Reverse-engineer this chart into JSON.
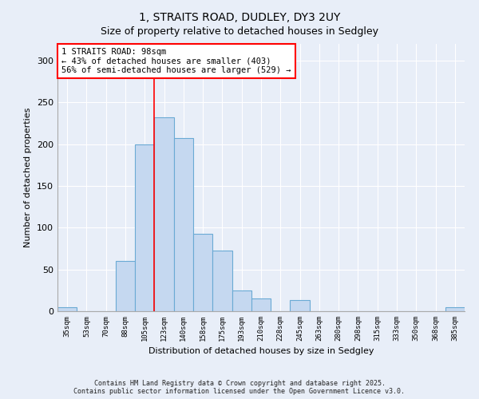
{
  "title_line1": "1, STRAITS ROAD, DUDLEY, DY3 2UY",
  "title_line2": "Size of property relative to detached houses in Sedgley",
  "xlabel": "Distribution of detached houses by size in Sedgley",
  "ylabel": "Number of detached properties",
  "categories": [
    "35sqm",
    "53sqm",
    "70sqm",
    "88sqm",
    "105sqm",
    "123sqm",
    "140sqm",
    "158sqm",
    "175sqm",
    "193sqm",
    "210sqm",
    "228sqm",
    "245sqm",
    "263sqm",
    "280sqm",
    "298sqm",
    "315sqm",
    "333sqm",
    "350sqm",
    "368sqm",
    "385sqm"
  ],
  "values": [
    5,
    0,
    0,
    60,
    200,
    232,
    207,
    93,
    73,
    25,
    15,
    0,
    13,
    0,
    0,
    0,
    0,
    0,
    0,
    0,
    5
  ],
  "bar_color": "#c5d8f0",
  "bar_edge_color": "#6aaad4",
  "red_line_x": 4.5,
  "annotation_title": "1 STRAITS ROAD: 98sqm",
  "annotation_line2": "← 43% of detached houses are smaller (403)",
  "annotation_line3": "56% of semi-detached houses are larger (529) →",
  "annotation_box_color": "white",
  "annotation_box_edge_color": "red",
  "ylim": [
    0,
    320
  ],
  "yticks": [
    0,
    50,
    100,
    150,
    200,
    250,
    300
  ],
  "background_color": "#e8eef8",
  "grid_color": "#ffffff",
  "footer_line1": "Contains HM Land Registry data © Crown copyright and database right 2025.",
  "footer_line2": "Contains public sector information licensed under the Open Government Licence v3.0."
}
